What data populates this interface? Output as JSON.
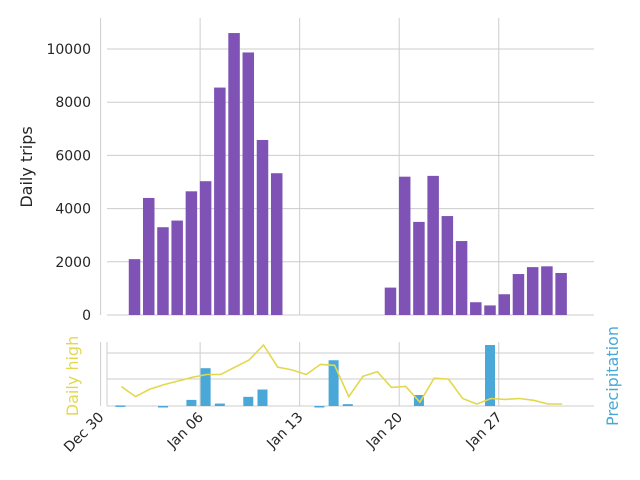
{
  "colors": {
    "trips": "#7f52b5",
    "high": "#e3d84d",
    "precip": "#4aa8d8",
    "grid": "#cccccc",
    "text": "#262626"
  },
  "chart_data": [
    {
      "type": "bar",
      "ylabel": "Daily trips",
      "ylim": [
        0,
        11000
      ],
      "yticks": [
        0,
        2000,
        4000,
        6000,
        8000,
        10000
      ],
      "grid": true,
      "x": [
        "2018-12-31",
        "2019-01-01",
        "2019-01-02",
        "2019-01-03",
        "2019-01-04",
        "2019-01-05",
        "2019-01-06",
        "2019-01-07",
        "2019-01-08",
        "2019-01-09",
        "2019-01-10",
        "2019-01-11",
        "2019-01-12",
        "2019-01-13",
        "2019-01-14",
        "2019-01-15",
        "2019-01-16",
        "2019-01-17",
        "2019-01-18",
        "2019-01-19",
        "2019-01-20",
        "2019-01-21",
        "2019-01-22",
        "2019-01-23",
        "2019-01-24",
        "2019-01-25",
        "2019-01-26",
        "2019-01-27",
        "2019-01-28",
        "2019-01-29",
        "2019-01-30",
        "2019-01-31"
      ],
      "values": [
        0,
        2100,
        4400,
        3300,
        3550,
        4650,
        5030,
        8550,
        10600,
        9870,
        6580,
        5330,
        0,
        0,
        0,
        0,
        0,
        0,
        0,
        1030,
        5200,
        3500,
        5230,
        3720,
        2780,
        480,
        360,
        780,
        1540,
        1800,
        1830,
        1580
      ]
    },
    {
      "type": "line",
      "ylabel": "Daily high",
      "series": [
        {
          "values": [
            51,
            40,
            48,
            53,
            57,
            61,
            64,
            64,
            72,
            80,
            96,
            72,
            69,
            64,
            75,
            74,
            40,
            62,
            67,
            50,
            51,
            34,
            60,
            59,
            38,
            32,
            38,
            37,
            38,
            36,
            32,
            32
          ]
        }
      ]
    },
    {
      "type": "bar",
      "ylabel": "Precipitation",
      "values": [
        0.01,
        0,
        0,
        -0.01,
        0,
        0.1,
        0.62,
        0.04,
        0,
        0.15,
        0.27,
        0,
        0,
        0,
        -0.02,
        0.75,
        0.03,
        0,
        0,
        0,
        0,
        0.18,
        0,
        0,
        0,
        0,
        1.0,
        0,
        0,
        0,
        0,
        0
      ]
    }
  ],
  "xaxis": {
    "tick_labels": [
      "Dec 30",
      "Jan 06",
      "Jan 13",
      "Jan 20",
      "Jan 27"
    ]
  }
}
